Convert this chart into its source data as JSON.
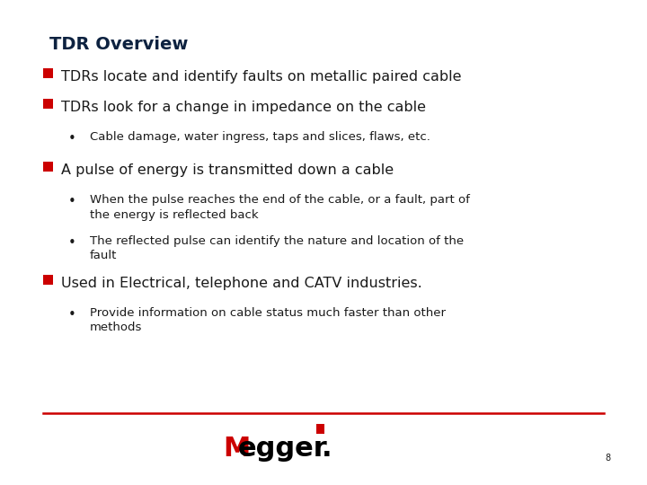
{
  "title": "TDR Overview",
  "title_color": "#0d2240",
  "title_fontsize": 14,
  "background_color": "#ffffff",
  "bullet_color": "#cc0000",
  "text_color": "#1a1a1a",
  "main_bullet_fontsize": 11.5,
  "sub_bullet_fontsize": 9.5,
  "main_bullets": [
    {
      "text": "TDRs locate and identify faults on metallic paired cable",
      "sub": []
    },
    {
      "text": "TDRs look for a change in impedance on the cable",
      "sub": [
        "Cable damage, water ingress, taps and slices, flaws, etc."
      ]
    },
    {
      "text": "A pulse of energy is transmitted down a cable",
      "sub": [
        "When the pulse reaches the end of the cable, or a fault, part of\nthe energy is reflected back",
        "The reflected pulse can identify the nature and location of the\nfault"
      ]
    },
    {
      "text": "Used in Electrical, telephone and CATV industries.",
      "sub": [
        "Provide information on cable status much faster than other\nmethods"
      ]
    }
  ],
  "footer_line_color": "#cc0000",
  "megger_M_color": "#cc0000",
  "megger_rest_color": "#000000",
  "page_number": "8"
}
